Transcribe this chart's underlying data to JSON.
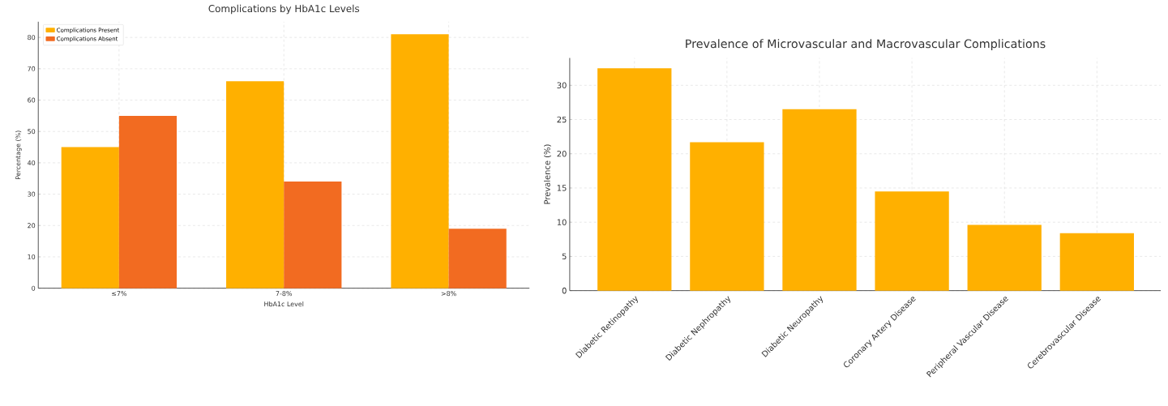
{
  "chart_data": [
    {
      "type": "bar",
      "title": "Complications by HbA1c Levels",
      "xlabel": "HbA1c Level",
      "ylabel": "Percentage (%)",
      "categories": [
        "≤7%",
        "7-8%",
        ">8%"
      ],
      "series": [
        {
          "name": "Complications Present",
          "color": "#ffb000",
          "values": [
            45,
            66,
            81
          ]
        },
        {
          "name": "Complications Absent",
          "color": "#f26b21",
          "values": [
            55,
            34,
            19
          ]
        }
      ],
      "ylim": [
        0,
        85
      ],
      "yticks": [
        0,
        10,
        20,
        30,
        40,
        50,
        60,
        70,
        80
      ],
      "grid": true,
      "legend": "top left"
    },
    {
      "type": "bar",
      "title": "Prevalence of Microvascular and Macrovascular Complications",
      "ylabel": "Prevalence (%)",
      "categories": [
        "Diabetic Retinopathy",
        "Diabetic Nephropathy",
        "Diabetic Neuropathy",
        "Coronary Artery Disease",
        "Peripheral Vascular Disease",
        "Cerebrovascular Disease"
      ],
      "series": [
        {
          "color": "#ffb000",
          "values": [
            32.5,
            21.7,
            26.5,
            14.5,
            9.6,
            8.4
          ]
        }
      ],
      "ylim": [
        0,
        34
      ],
      "yticks": [
        0,
        5,
        10,
        15,
        20,
        25,
        30
      ],
      "grid": true
    }
  ]
}
